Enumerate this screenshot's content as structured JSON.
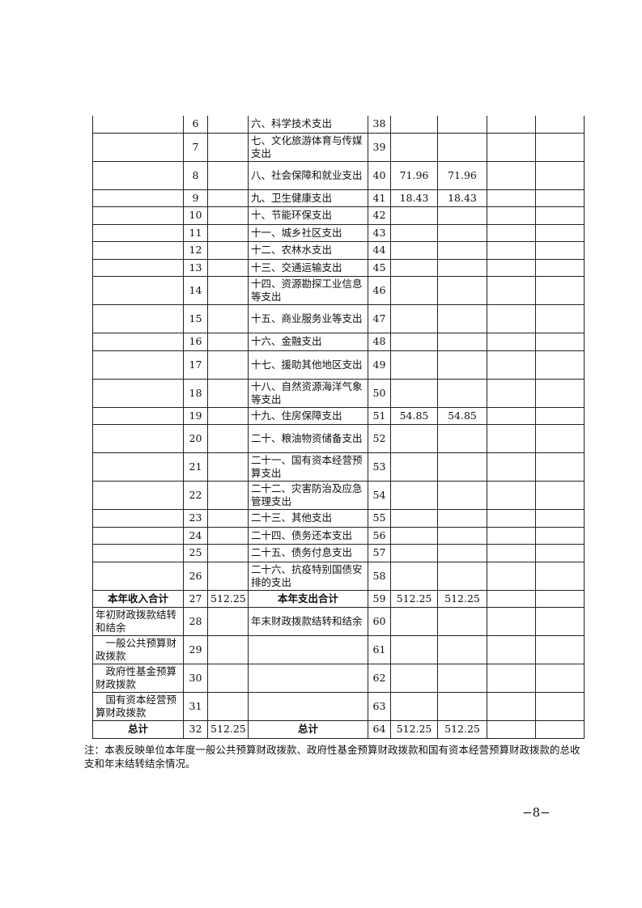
{
  "table": {
    "rows": [
      {
        "il": "",
        "in": "6",
        "ia": "",
        "el": "六、科学技术支出",
        "en": "38",
        "v1": "",
        "v2": "",
        "v3": "",
        "v4": "",
        "h": "s"
      },
      {
        "il": "",
        "in": "7",
        "ia": "",
        "el": "七、文化旅游体育与传媒支出",
        "en": "39",
        "v1": "",
        "v2": "",
        "v3": "",
        "v4": "",
        "h": "d"
      },
      {
        "il": "",
        "in": "8",
        "ia": "",
        "el": "八、社会保障和就业支出",
        "en": "40",
        "v1": "71.96",
        "v2": "71.96",
        "v3": "",
        "v4": "",
        "h": "d"
      },
      {
        "il": "",
        "in": "9",
        "ia": "",
        "el": "九、卫生健康支出",
        "en": "41",
        "v1": "18.43",
        "v2": "18.43",
        "v3": "",
        "v4": "",
        "h": "s"
      },
      {
        "il": "",
        "in": "10",
        "ia": "",
        "el": "十、节能环保支出",
        "en": "42",
        "v1": "",
        "v2": "",
        "v3": "",
        "v4": "",
        "h": "s"
      },
      {
        "il": "",
        "in": "11",
        "ia": "",
        "el": "十一、城乡社区支出",
        "en": "43",
        "v1": "",
        "v2": "",
        "v3": "",
        "v4": "",
        "h": "s"
      },
      {
        "il": "",
        "in": "12",
        "ia": "",
        "el": "十二、农林水支出",
        "en": "44",
        "v1": "",
        "v2": "",
        "v3": "",
        "v4": "",
        "h": "s"
      },
      {
        "il": "",
        "in": "13",
        "ia": "",
        "el": "十三、交通运输支出",
        "en": "45",
        "v1": "",
        "v2": "",
        "v3": "",
        "v4": "",
        "h": "s"
      },
      {
        "il": "",
        "in": "14",
        "ia": "",
        "el": "十四、资源勘探工业信息等支出",
        "en": "46",
        "v1": "",
        "v2": "",
        "v3": "",
        "v4": "",
        "h": "d"
      },
      {
        "il": "",
        "in": "15",
        "ia": "",
        "el": "十五、商业服务业等支出",
        "en": "47",
        "v1": "",
        "v2": "",
        "v3": "",
        "v4": "",
        "h": "d"
      },
      {
        "il": "",
        "in": "16",
        "ia": "",
        "el": "十六、金融支出",
        "en": "48",
        "v1": "",
        "v2": "",
        "v3": "",
        "v4": "",
        "h": "s"
      },
      {
        "il": "",
        "in": "17",
        "ia": "",
        "el": "十七、援助其他地区支出",
        "en": "49",
        "v1": "",
        "v2": "",
        "v3": "",
        "v4": "",
        "h": "d"
      },
      {
        "il": "",
        "in": "18",
        "ia": "",
        "el": "十八、自然资源海洋气象等支出",
        "en": "50",
        "v1": "",
        "v2": "",
        "v3": "",
        "v4": "",
        "h": "d"
      },
      {
        "il": "",
        "in": "19",
        "ia": "",
        "el": "十九、住房保障支出",
        "en": "51",
        "v1": "54.85",
        "v2": "54.85",
        "v3": "",
        "v4": "",
        "h": "s"
      },
      {
        "il": "",
        "in": "20",
        "ia": "",
        "el": "二十、粮油物资储备支出",
        "en": "52",
        "v1": "",
        "v2": "",
        "v3": "",
        "v4": "",
        "h": "d"
      },
      {
        "il": "",
        "in": "21",
        "ia": "",
        "el": "二十一、国有资本经营预算支出",
        "en": "53",
        "v1": "",
        "v2": "",
        "v3": "",
        "v4": "",
        "h": "d"
      },
      {
        "il": "",
        "in": "22",
        "ia": "",
        "el": "二十二、灾害防治及应急管理支出",
        "en": "54",
        "v1": "",
        "v2": "",
        "v3": "",
        "v4": "",
        "h": "d"
      },
      {
        "il": "",
        "in": "23",
        "ia": "",
        "el": "二十三、其他支出",
        "en": "55",
        "v1": "",
        "v2": "",
        "v3": "",
        "v4": "",
        "h": "s"
      },
      {
        "il": "",
        "in": "24",
        "ia": "",
        "el": "二十四、债务还本支出",
        "en": "56",
        "v1": "",
        "v2": "",
        "v3": "",
        "v4": "",
        "h": "s"
      },
      {
        "il": "",
        "in": "25",
        "ia": "",
        "el": "二十五、债务付息支出",
        "en": "57",
        "v1": "",
        "v2": "",
        "v3": "",
        "v4": "",
        "h": "s"
      },
      {
        "il": "",
        "in": "26",
        "ia": "",
        "el": "二十六、抗疫特别国债安排的支出",
        "en": "58",
        "v1": "",
        "v2": "",
        "v3": "",
        "v4": "",
        "h": "d"
      },
      {
        "il": "本年收入合计",
        "in": "27",
        "ia": "512.25",
        "el": "本年支出合计",
        "en": "59",
        "v1": "512.25",
        "v2": "512.25",
        "v3": "",
        "v4": "",
        "h": "s",
        "bold": true
      },
      {
        "il": "年初财政拨款结转和结余",
        "in": "28",
        "ia": "",
        "el": "年末财政拨款结转和结余",
        "en": "60",
        "v1": "",
        "v2": "",
        "v3": "",
        "v4": "",
        "h": "d"
      },
      {
        "il": "一般公共预算财政拨款",
        "in": "29",
        "ia": "",
        "el": "",
        "en": "61",
        "v1": "",
        "v2": "",
        "v3": "",
        "v4": "",
        "h": "d",
        "indent": true
      },
      {
        "il": "政府性基金预算财政拨款",
        "in": "30",
        "ia": "",
        "el": "",
        "en": "62",
        "v1": "",
        "v2": "",
        "v3": "",
        "v4": "",
        "h": "d",
        "indent": true
      },
      {
        "il": "国有资本经营预算财政拨款",
        "in": "31",
        "ia": "",
        "el": "",
        "en": "63",
        "v1": "",
        "v2": "",
        "v3": "",
        "v4": "",
        "h": "d",
        "indent": true
      },
      {
        "il": "总计",
        "in": "32",
        "ia": "512.25",
        "el": "总计",
        "en": "64",
        "v1": "512.25",
        "v2": "512.25",
        "v3": "",
        "v4": "",
        "h": "s",
        "bold": true
      }
    ]
  },
  "note": "注：本表反映单位本年度一般公共预算财政拨款、政府性基金预算财政拨款和国有资本经营预算财政拨款的总收支和年末结转结余情况。",
  "page_number": "−8−"
}
